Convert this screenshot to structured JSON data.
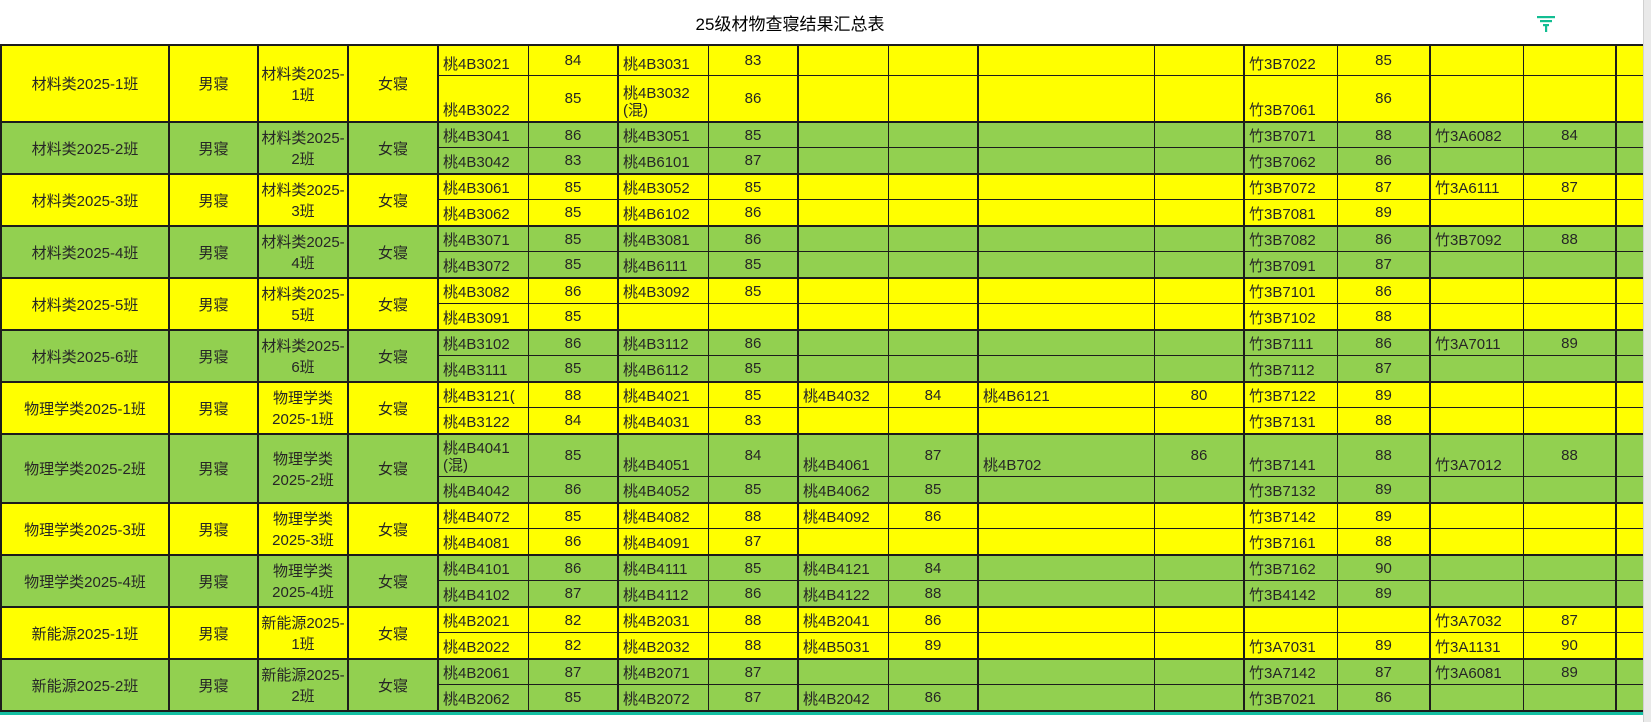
{
  "title": "25级材物查寝结果汇总表",
  "colors": {
    "row_yellow": "#FFFF00",
    "row_green": "#92D050",
    "grid_border": "#1c1c1c",
    "filter_icon_teal": "#12BD92",
    "bottom_line_teal": "#15C0A3"
  },
  "rows": [
    {
      "tone": "yellow",
      "left": {
        "cls": "材料类2025-1班",
        "label": "男寝",
        "rows": [
          [
            [
              "桃4B3021",
              "84"
            ],
            [
              "桃4B3031",
              "83"
            ],
            [
              "",
              ""
            ],
            [
              "",
              ""
            ]
          ],
          [
            [
              "桃4B3022",
              "85"
            ],
            [
              "桃4B3032(混)",
              "86"
            ],
            [
              "",
              ""
            ],
            [
              "",
              ""
            ]
          ]
        ]
      },
      "right": {
        "cls": "材料类2025-1班",
        "label": "女寝",
        "rows": [
          [
            [
              "竹3B7022",
              "85"
            ],
            [
              "",
              ""
            ]
          ],
          [
            [
              "竹3B7061",
              "86"
            ],
            [
              "",
              ""
            ]
          ]
        ]
      }
    },
    {
      "tone": "green",
      "left": {
        "cls": "材料类2025-2班",
        "label": "男寝",
        "rows": [
          [
            [
              "桃4B3041",
              "86"
            ],
            [
              "桃4B3051",
              "85"
            ],
            [
              "",
              ""
            ],
            [
              "",
              ""
            ]
          ],
          [
            [
              "桃4B3042",
              "83"
            ],
            [
              "桃4B6101",
              "87"
            ],
            [
              "",
              ""
            ],
            [
              "",
              ""
            ]
          ]
        ]
      },
      "right": {
        "cls": "材料类2025-2班",
        "label": "女寝",
        "rows": [
          [
            [
              "竹3B7071",
              "88"
            ],
            [
              "竹3A6082",
              "84"
            ]
          ],
          [
            [
              "竹3B7062",
              "86"
            ],
            [
              "",
              ""
            ]
          ]
        ]
      }
    },
    {
      "tone": "yellow",
      "left": {
        "cls": "材料类2025-3班",
        "label": "男寝",
        "rows": [
          [
            [
              "桃4B3061",
              "85"
            ],
            [
              "桃4B3052",
              "85"
            ],
            [
              "",
              ""
            ],
            [
              "",
              ""
            ]
          ],
          [
            [
              "桃4B3062",
              "85"
            ],
            [
              "桃4B6102",
              "86"
            ],
            [
              "",
              ""
            ],
            [
              "",
              ""
            ]
          ]
        ]
      },
      "right": {
        "cls": "材料类2025-3班",
        "label": "女寝",
        "rows": [
          [
            [
              "竹3B7072",
              "87"
            ],
            [
              "竹3A6111",
              "87"
            ]
          ],
          [
            [
              "竹3B7081",
              "89"
            ],
            [
              "",
              ""
            ]
          ]
        ]
      }
    },
    {
      "tone": "green",
      "left": {
        "cls": "材料类2025-4班",
        "label": "男寝",
        "rows": [
          [
            [
              "桃4B3071",
              "85"
            ],
            [
              "桃4B3081",
              "86"
            ],
            [
              "",
              ""
            ],
            [
              "",
              ""
            ]
          ],
          [
            [
              "桃4B3072",
              "85"
            ],
            [
              "桃4B6111",
              "85"
            ],
            [
              "",
              ""
            ],
            [
              "",
              ""
            ]
          ]
        ]
      },
      "right": {
        "cls": "材料类2025-4班",
        "label": "女寝",
        "rows": [
          [
            [
              "竹3B7082",
              "86"
            ],
            [
              "竹3B7092",
              "88"
            ]
          ],
          [
            [
              "竹3B7091",
              "87"
            ],
            [
              "",
              ""
            ]
          ]
        ]
      }
    },
    {
      "tone": "yellow",
      "left": {
        "cls": "材料类2025-5班",
        "label": "男寝",
        "rows": [
          [
            [
              "桃4B3082",
              "86"
            ],
            [
              "桃4B3092",
              "85"
            ],
            [
              "",
              ""
            ],
            [
              "",
              ""
            ]
          ],
          [
            [
              "桃4B3091",
              "85"
            ],
            [
              "",
              ""
            ],
            [
              "",
              ""
            ],
            [
              "",
              ""
            ]
          ]
        ]
      },
      "right": {
        "cls": "材料类2025-5班",
        "label": "女寝",
        "rows": [
          [
            [
              "竹3B7101",
              "86"
            ],
            [
              "",
              ""
            ]
          ],
          [
            [
              "竹3B7102",
              "88"
            ],
            [
              "",
              ""
            ]
          ]
        ]
      }
    },
    {
      "tone": "green",
      "left": {
        "cls": "材料类2025-6班",
        "label": "男寝",
        "rows": [
          [
            [
              "桃4B3102",
              "86"
            ],
            [
              "桃4B3112",
              "86"
            ],
            [
              "",
              ""
            ],
            [
              "",
              ""
            ]
          ],
          [
            [
              "桃4B3111",
              "85"
            ],
            [
              "桃4B6112",
              "85"
            ],
            [
              "",
              ""
            ],
            [
              "",
              ""
            ]
          ]
        ]
      },
      "right": {
        "cls": "材料类2025-6班",
        "label": "女寝",
        "rows": [
          [
            [
              "竹3B7111",
              "86"
            ],
            [
              "竹3A7011",
              "89"
            ]
          ],
          [
            [
              "竹3B7112",
              "87"
            ],
            [
              "",
              ""
            ]
          ]
        ]
      }
    },
    {
      "tone": "yellow",
      "left": {
        "cls": "物理学类2025-1班",
        "label": "男寝",
        "rows": [
          [
            [
              "桃4B3121(",
              "88"
            ],
            [
              "桃4B4021",
              "85"
            ],
            [
              "桃4B4032",
              "84"
            ],
            [
              "桃4B6121",
              "80"
            ]
          ],
          [
            [
              "桃4B3122",
              "84"
            ],
            [
              "桃4B4031",
              "83"
            ],
            [
              "",
              ""
            ],
            [
              "",
              ""
            ]
          ]
        ]
      },
      "right": {
        "cls": "物理学类2025-1班",
        "label": "女寝",
        "rows": [
          [
            [
              "竹3B7122",
              "89"
            ],
            [
              "",
              ""
            ]
          ],
          [
            [
              "竹3B7131",
              "88"
            ],
            [
              "",
              ""
            ]
          ]
        ]
      }
    },
    {
      "tone": "green",
      "left": {
        "cls": "物理学类2025-2班",
        "label": "男寝",
        "rows": [
          [
            [
              "桃4B4041(混)",
              "85"
            ],
            [
              "桃4B4051",
              "84"
            ],
            [
              "桃4B4061",
              "87"
            ],
            [
              "桃4B702",
              "86"
            ]
          ],
          [
            [
              "桃4B4042",
              "86"
            ],
            [
              "桃4B4052",
              "85"
            ],
            [
              "桃4B4062",
              "85"
            ],
            [
              "",
              ""
            ]
          ]
        ]
      },
      "right": {
        "cls": "物理学类2025-2班",
        "label": "女寝",
        "rows": [
          [
            [
              "竹3B7141",
              "88"
            ],
            [
              "竹3A7012",
              "88"
            ]
          ],
          [
            [
              "竹3B7132",
              "89"
            ],
            [
              "",
              ""
            ]
          ]
        ]
      }
    },
    {
      "tone": "yellow",
      "left": {
        "cls": "物理学类2025-3班",
        "label": "男寝",
        "rows": [
          [
            [
              "桃4B4072",
              "85"
            ],
            [
              "桃4B4082",
              "88"
            ],
            [
              "桃4B4092",
              "86"
            ],
            [
              "",
              ""
            ]
          ],
          [
            [
              "桃4B4081",
              "86"
            ],
            [
              "桃4B4091",
              "87"
            ],
            [
              "",
              ""
            ],
            [
              "",
              ""
            ]
          ]
        ]
      },
      "right": {
        "cls": "物理学类2025-3班",
        "label": "女寝",
        "rows": [
          [
            [
              "竹3B7142",
              "89"
            ],
            [
              "",
              ""
            ]
          ],
          [
            [
              "竹3B7161",
              "88"
            ],
            [
              "",
              ""
            ]
          ]
        ]
      }
    },
    {
      "tone": "green",
      "left": {
        "cls": "物理学类2025-4班",
        "label": "男寝",
        "rows": [
          [
            [
              "桃4B4101",
              "86"
            ],
            [
              "桃4B4111",
              "85"
            ],
            [
              "桃4B4121",
              "84"
            ],
            [
              "",
              ""
            ]
          ],
          [
            [
              "桃4B4102",
              "87"
            ],
            [
              "桃4B4112",
              "86"
            ],
            [
              "桃4B4122",
              "88"
            ],
            [
              "",
              ""
            ]
          ]
        ]
      },
      "right": {
        "cls": "物理学类2025-4班",
        "label": "女寝",
        "rows": [
          [
            [
              "竹3B7162",
              "90"
            ],
            [
              "",
              ""
            ]
          ],
          [
            [
              "竹3B4142",
              "89"
            ],
            [
              "",
              ""
            ]
          ]
        ]
      }
    },
    {
      "tone": "yellow",
      "left": {
        "cls": "新能源2025-1班",
        "label": "男寝",
        "rows": [
          [
            [
              "桃4B2021",
              "82"
            ],
            [
              "桃4B2031",
              "88"
            ],
            [
              "桃4B2041",
              "86"
            ],
            [
              "",
              ""
            ]
          ],
          [
            [
              "桃4B2022",
              "82"
            ],
            [
              "桃4B2032",
              "88"
            ],
            [
              "桃4B5031",
              "89"
            ],
            [
              "",
              ""
            ]
          ]
        ]
      },
      "right": {
        "cls": "新能源2025-1班",
        "label": "女寝",
        "rows": [
          [
            [
              "",
              ""
            ],
            [
              "竹3A7032",
              "87"
            ]
          ],
          [
            [
              "竹3A7031",
              "89"
            ],
            [
              "竹3A1131",
              "90"
            ]
          ]
        ]
      }
    },
    {
      "tone": "green",
      "left": {
        "cls": "新能源2025-2班",
        "label": "男寝",
        "rows": [
          [
            [
              "桃4B2061",
              "87"
            ],
            [
              "桃4B2071",
              "87"
            ],
            [
              "",
              ""
            ],
            [
              "",
              ""
            ]
          ],
          [
            [
              "桃4B2062",
              "85"
            ],
            [
              "桃4B2072",
              "87"
            ],
            [
              "桃4B2042",
              "86"
            ],
            [
              "",
              ""
            ]
          ]
        ]
      },
      "right": {
        "cls": "新能源2025-2班",
        "label": "女寝",
        "rows": [
          [
            [
              "竹3A7142",
              "87"
            ],
            [
              "竹3A6081",
              "89"
            ]
          ],
          [
            [
              "竹3B7021",
              "86"
            ],
            [
              "",
              ""
            ]
          ]
        ]
      }
    }
  ]
}
